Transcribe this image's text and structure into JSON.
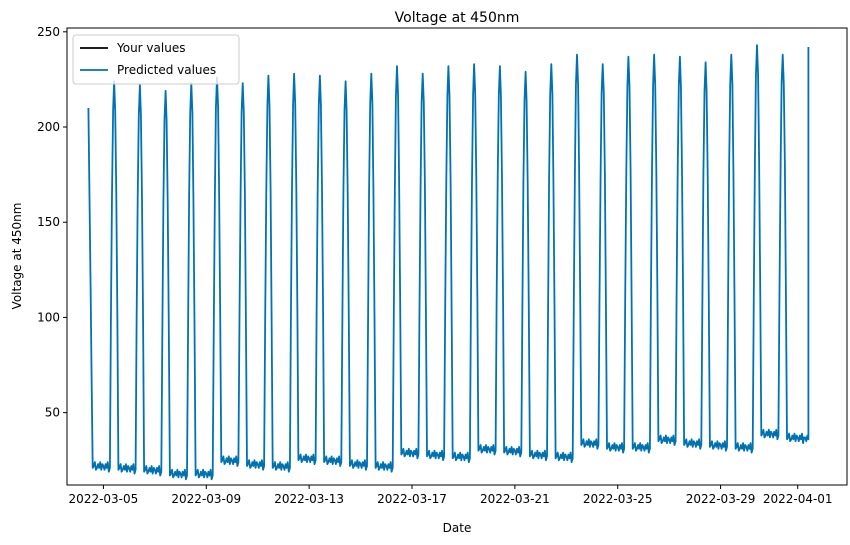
{
  "chart_data": {
    "type": "line",
    "title": "Voltage at 450nm",
    "xlabel": "Date",
    "ylabel": "Voltage at 450nm",
    "x_range": [
      "2022-03-03T14:00",
      "2022-04-02T22:00"
    ],
    "ylim": [
      12,
      252
    ],
    "y_ticks": [
      50,
      100,
      150,
      200,
      250
    ],
    "x_ticks": [
      "2022-03-05",
      "2022-03-09",
      "2022-03-13",
      "2022-03-17",
      "2022-03-21",
      "2022-03-25",
      "2022-03-29",
      "2022-04-01"
    ],
    "grid": false,
    "legend_position": "top-left",
    "series": [
      {
        "name": "Your values",
        "color": "#000000",
        "values": []
      },
      {
        "name": "Predicted values",
        "color": "#0072b2",
        "start_value": 210,
        "start_date": "2022-03-04T10:00",
        "end_value": 242,
        "end_date": "2022-04-01T10:00",
        "peaks": [
          {
            "date": "2022-03-05",
            "value": 224
          },
          {
            "date": "2022-03-06",
            "value": 222
          },
          {
            "date": "2022-03-07",
            "value": 219
          },
          {
            "date": "2022-03-08",
            "value": 223
          },
          {
            "date": "2022-03-09",
            "value": 226
          },
          {
            "date": "2022-03-10",
            "value": 223
          },
          {
            "date": "2022-03-11",
            "value": 227
          },
          {
            "date": "2022-03-12",
            "value": 228
          },
          {
            "date": "2022-03-13",
            "value": 227
          },
          {
            "date": "2022-03-14",
            "value": 224
          },
          {
            "date": "2022-03-15",
            "value": 228
          },
          {
            "date": "2022-03-16",
            "value": 232
          },
          {
            "date": "2022-03-17",
            "value": 228
          },
          {
            "date": "2022-03-18",
            "value": 232
          },
          {
            "date": "2022-03-19",
            "value": 233
          },
          {
            "date": "2022-03-20",
            "value": 232
          },
          {
            "date": "2022-03-21",
            "value": 229
          },
          {
            "date": "2022-03-22",
            "value": 233
          },
          {
            "date": "2022-03-23",
            "value": 238
          },
          {
            "date": "2022-03-24",
            "value": 233
          },
          {
            "date": "2022-03-25",
            "value": 237
          },
          {
            "date": "2022-03-26",
            "value": 238
          },
          {
            "date": "2022-03-27",
            "value": 237
          },
          {
            "date": "2022-03-28",
            "value": 234
          },
          {
            "date": "2022-03-29",
            "value": 238
          },
          {
            "date": "2022-03-30",
            "value": 243
          },
          {
            "date": "2022-03-31",
            "value": 238
          }
        ],
        "troughs": [
          {
            "date": "2022-03-04",
            "value": 21
          },
          {
            "date": "2022-03-05",
            "value": 20
          },
          {
            "date": "2022-03-06",
            "value": 19
          },
          {
            "date": "2022-03-07",
            "value": 17
          },
          {
            "date": "2022-03-08",
            "value": 17
          },
          {
            "date": "2022-03-09",
            "value": 24
          },
          {
            "date": "2022-03-10",
            "value": 22
          },
          {
            "date": "2022-03-11",
            "value": 21
          },
          {
            "date": "2022-03-12",
            "value": 25
          },
          {
            "date": "2022-03-13",
            "value": 24
          },
          {
            "date": "2022-03-14",
            "value": 22
          },
          {
            "date": "2022-03-15",
            "value": 21
          },
          {
            "date": "2022-03-16",
            "value": 28
          },
          {
            "date": "2022-03-17",
            "value": 27
          },
          {
            "date": "2022-03-18",
            "value": 26
          },
          {
            "date": "2022-03-19",
            "value": 30
          },
          {
            "date": "2022-03-20",
            "value": 29
          },
          {
            "date": "2022-03-21",
            "value": 27
          },
          {
            "date": "2022-03-22",
            "value": 26
          },
          {
            "date": "2022-03-23",
            "value": 33
          },
          {
            "date": "2022-03-24",
            "value": 31
          },
          {
            "date": "2022-03-25",
            "value": 31
          },
          {
            "date": "2022-03-26",
            "value": 35
          },
          {
            "date": "2022-03-27",
            "value": 33
          },
          {
            "date": "2022-03-28",
            "value": 32
          },
          {
            "date": "2022-03-29",
            "value": 31
          },
          {
            "date": "2022-03-30",
            "value": 38
          },
          {
            "date": "2022-03-31",
            "value": 36
          }
        ]
      }
    ]
  }
}
